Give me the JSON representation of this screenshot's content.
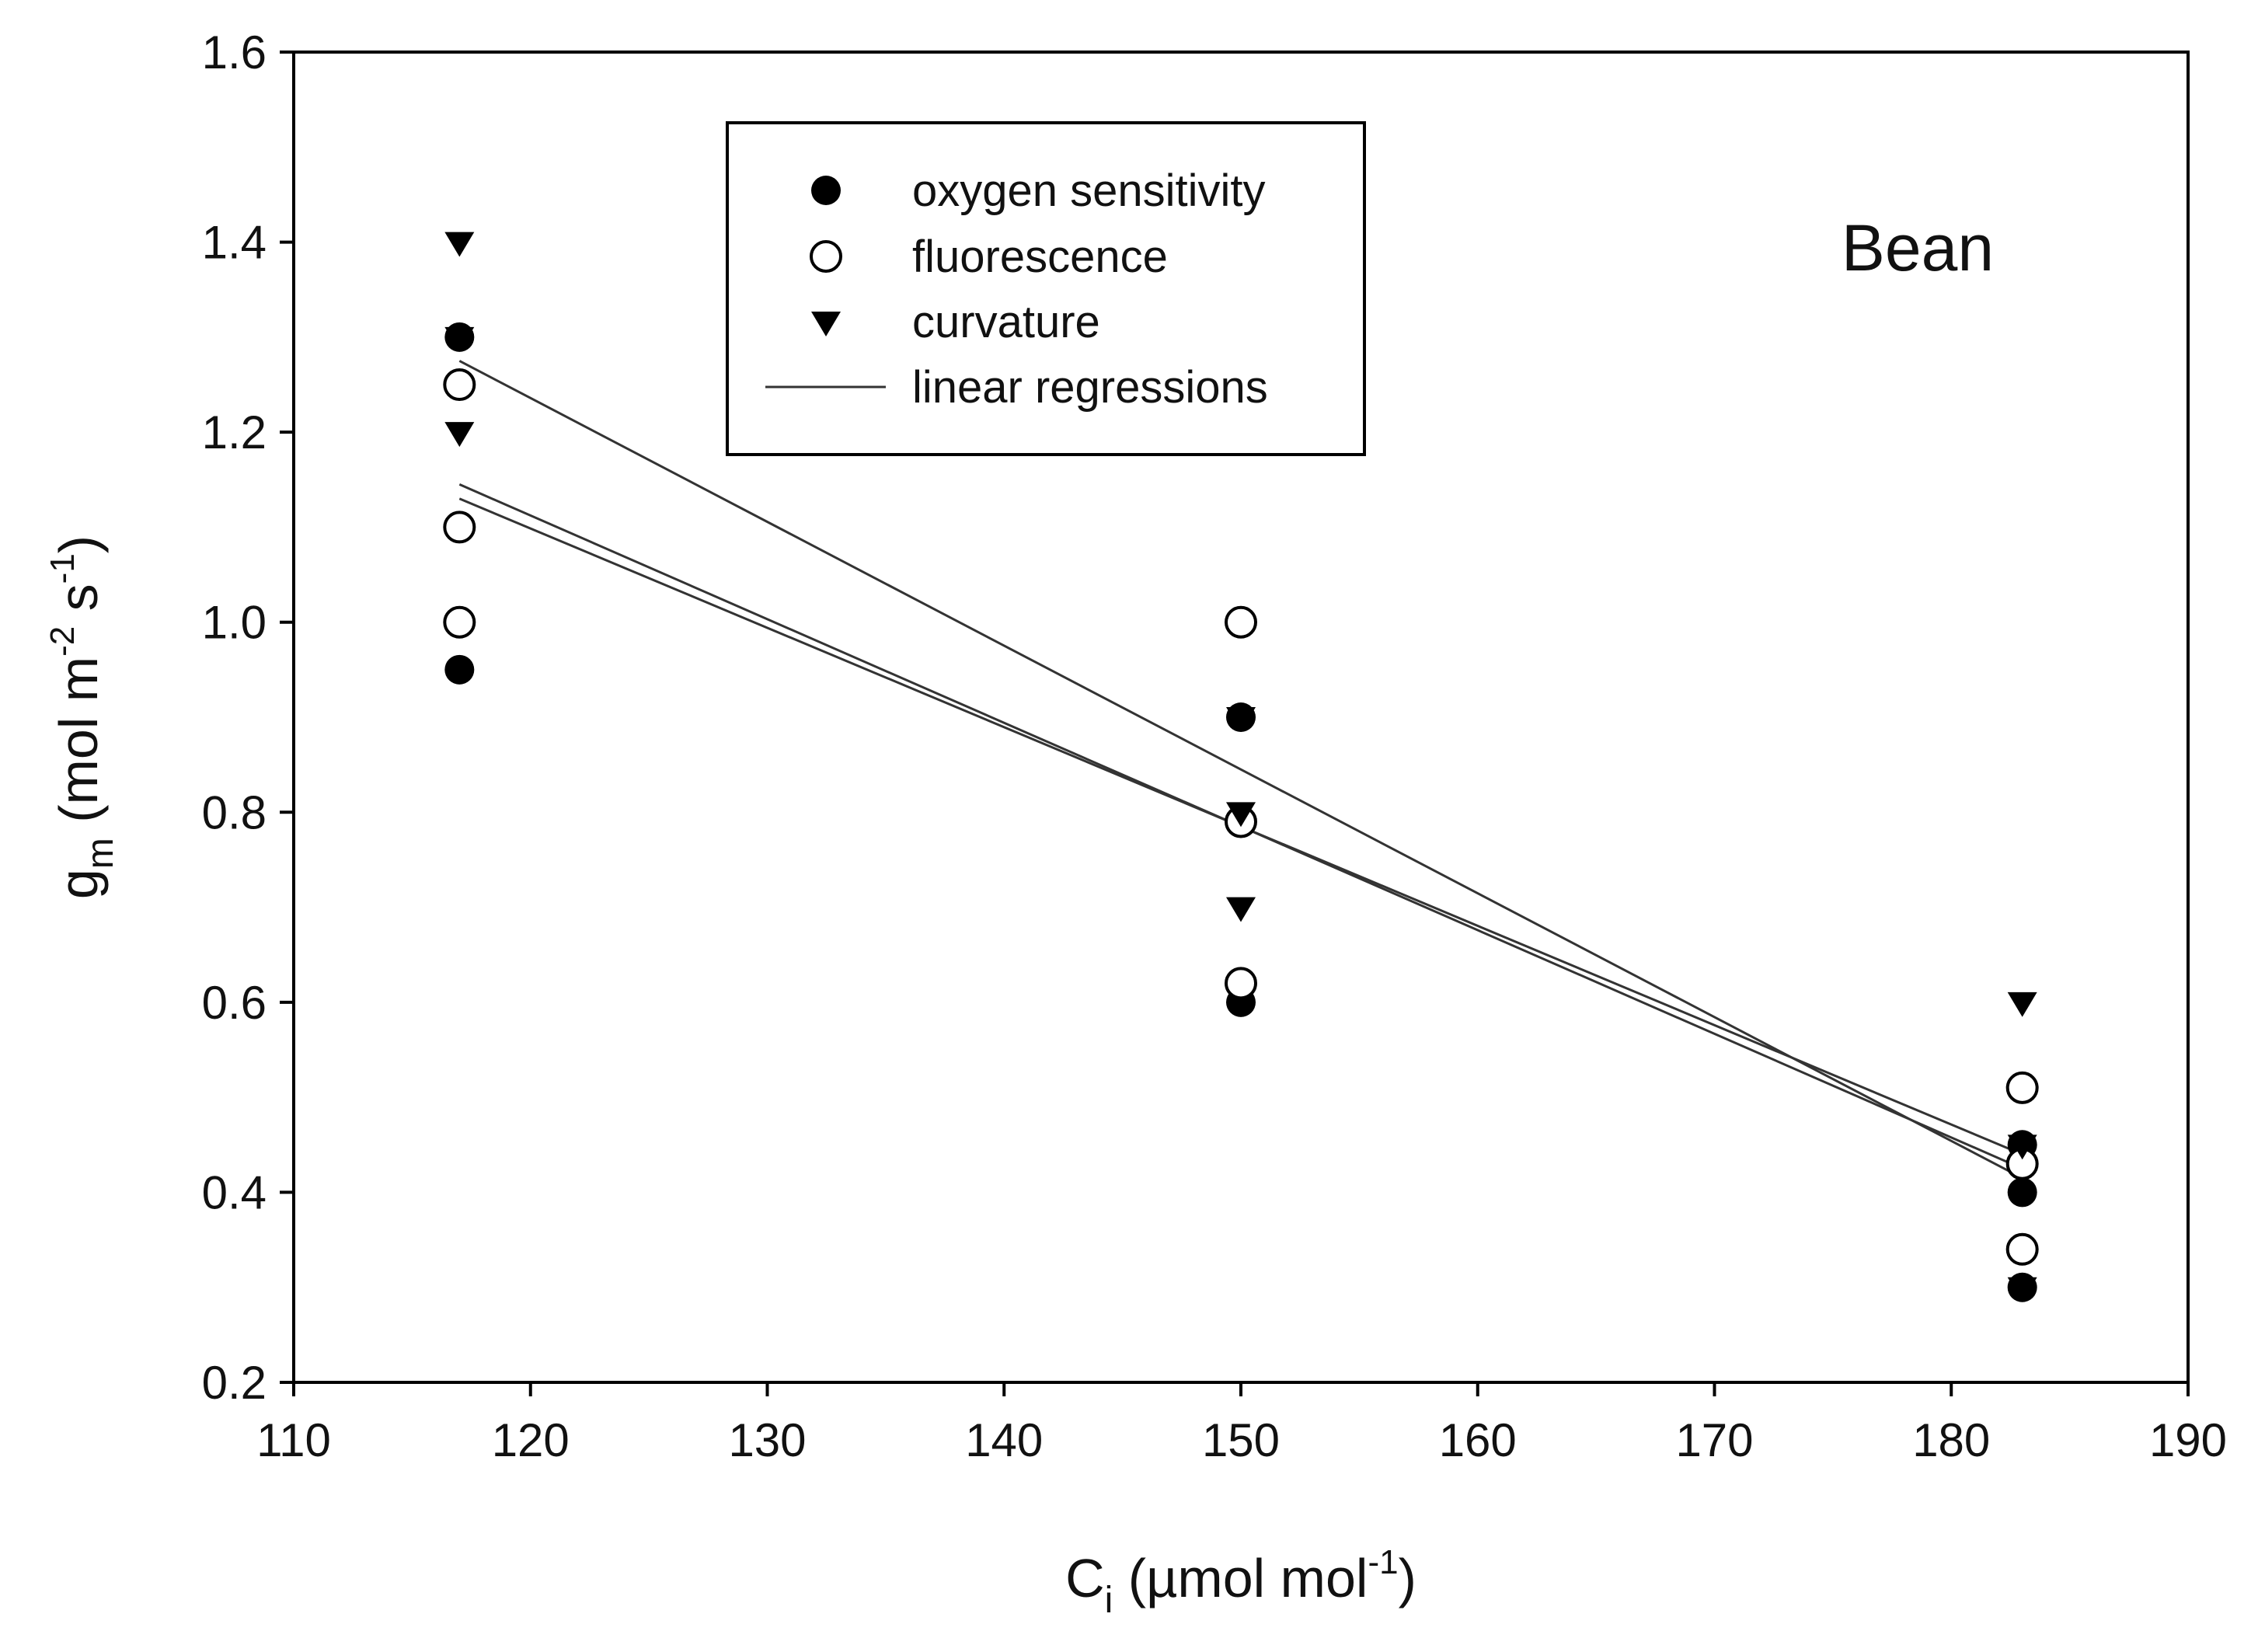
{
  "chart_data": {
    "type": "scatter",
    "annotation": "Bean",
    "xlabel": {
      "main": "C",
      "sub": "i",
      "unit_open": " (µmol mol",
      "sup": "-1",
      "unit_close": ")"
    },
    "ylabel": {
      "main": "g",
      "sub": "m",
      "unit1": " (mol m",
      "sup1": "-2",
      "unit2": " s",
      "sup2": "-1",
      "unit_close": ")"
    },
    "xlim": [
      110,
      190
    ],
    "ylim": [
      0.2,
      1.6
    ],
    "xticks": [
      "110",
      "120",
      "130",
      "140",
      "150",
      "160",
      "170",
      "180",
      "190"
    ],
    "yticks": [
      "0.2",
      "0.4",
      "0.6",
      "0.8",
      "1.0",
      "1.2",
      "1.4",
      "1.6"
    ],
    "legend": [
      {
        "label": "oxygen sensitivity",
        "marker": "filled-circle"
      },
      {
        "label": "fluorescence",
        "marker": "open-circle"
      },
      {
        "label": "curvature",
        "marker": "down-triangle"
      },
      {
        "label": "linear regressions",
        "marker": "line"
      }
    ],
    "series": [
      {
        "name": "oxygen sensitivity",
        "marker": "filled-circle",
        "points": [
          [
            117,
            1.3
          ],
          [
            117,
            0.95
          ],
          [
            150,
            0.9
          ],
          [
            150,
            0.6
          ],
          [
            183,
            0.45
          ],
          [
            183,
            0.4
          ],
          [
            183,
            0.3
          ]
        ]
      },
      {
        "name": "fluorescence",
        "marker": "open-circle",
        "points": [
          [
            117,
            1.25
          ],
          [
            117,
            1.1
          ],
          [
            117,
            1.0
          ],
          [
            150,
            1.0
          ],
          [
            150,
            0.79
          ],
          [
            150,
            0.62
          ],
          [
            183,
            0.51
          ],
          [
            183,
            0.43
          ],
          [
            183,
            0.34
          ]
        ]
      },
      {
        "name": "curvature",
        "marker": "down-triangle",
        "points": [
          [
            117,
            1.4
          ],
          [
            117,
            1.3
          ],
          [
            117,
            1.2
          ],
          [
            150,
            0.9
          ],
          [
            150,
            0.8
          ],
          [
            150,
            0.7
          ],
          [
            183,
            0.6
          ],
          [
            183,
            0.45
          ],
          [
            183,
            0.3
          ]
        ]
      }
    ],
    "regressions": [
      {
        "name": "curvature",
        "x": [
          117,
          183
        ],
        "y": [
          1.275,
          0.415
        ]
      },
      {
        "name": "oxygen sensitivity",
        "x": [
          117,
          183
        ],
        "y": [
          1.145,
          0.425
        ]
      },
      {
        "name": "fluorescence",
        "x": [
          117,
          183
        ],
        "y": [
          1.13,
          0.44
        ]
      }
    ],
    "colors": {
      "marker": "#000000",
      "open_fill": "#ffffff",
      "line": "#333333",
      "frame": "#000000"
    }
  }
}
